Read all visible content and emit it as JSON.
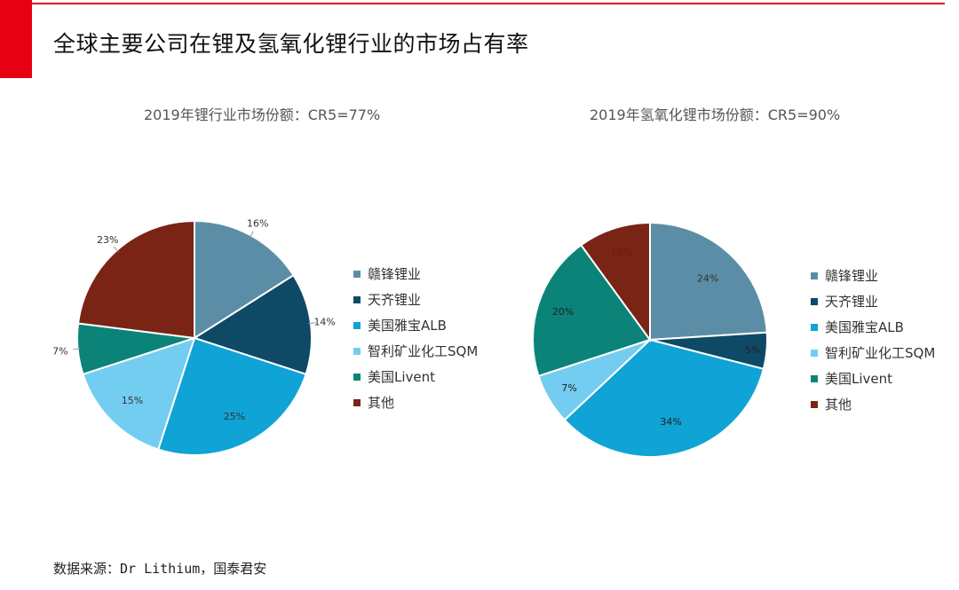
{
  "page": {
    "title": "全球主要公司在锂及氢氧化锂行业的市场占有率",
    "source": "数据来源：Dr Lithium，国泰君安"
  },
  "colors": {
    "accent": "#e60012",
    "series": [
      "#5b8ea6",
      "#0e4a66",
      "#10a3d6",
      "#73cdf0",
      "#0b8378",
      "#7a2416"
    ]
  },
  "chart_data": [
    {
      "type": "pie",
      "title": "2019年锂行业市场份额：CR5=77%",
      "categories": [
        "赣锋锂业",
        "天齐锂业",
        "美国雅宝ALB",
        "智利矿业化工SQM",
        "美国Livent",
        "其他"
      ],
      "values": [
        16,
        14,
        25,
        15,
        7,
        23
      ],
      "labels": [
        "16%",
        "14%",
        "25%",
        "15%",
        "7%",
        "23%"
      ],
      "legend": "right"
    },
    {
      "type": "pie",
      "title": "2019年氢氧化锂市场份额：CR5=90%",
      "categories": [
        "赣锋锂业",
        "天齐锂业",
        "美国雅宝ALB",
        "智利矿业化工SQM",
        "美国Livent",
        "其他"
      ],
      "values": [
        24,
        5,
        34,
        7,
        20,
        10
      ],
      "labels": [
        "24%",
        "5%",
        "34%",
        "7%",
        "20%",
        "10%"
      ],
      "legend": "right"
    }
  ]
}
